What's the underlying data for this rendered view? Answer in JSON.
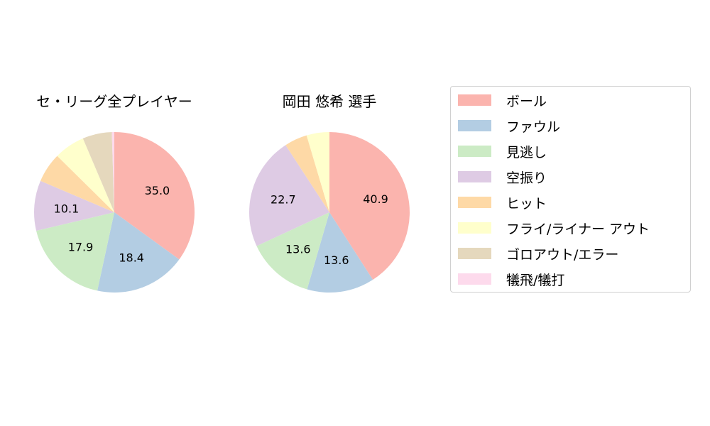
{
  "chart_data": [
    {
      "type": "pie",
      "title": "セ・リーグ全プレイヤー",
      "categories": [
        "ボール",
        "ファウル",
        "見逃し",
        "空振り",
        "ヒット",
        "フライ/ライナー アウト",
        "ゴロアウト/エラー",
        "犠飛/犠打"
      ],
      "values": [
        35.0,
        18.4,
        17.9,
        10.1,
        6.0,
        6.2,
        5.9,
        0.5
      ],
      "labels_shown": [
        "35.0",
        "18.4",
        "17.9",
        "10.1",
        "",
        "",
        "",
        ""
      ],
      "start_angle": 90,
      "direction": "clockwise"
    },
    {
      "type": "pie",
      "title": "岡田 悠希  選手",
      "categories": [
        "ボール",
        "ファウル",
        "見逃し",
        "空振り",
        "ヒット",
        "フライ/ライナー アウト",
        "ゴロアウト/エラー",
        "犠飛/犠打"
      ],
      "values": [
        40.9,
        13.6,
        13.6,
        22.7,
        4.6,
        4.6,
        0,
        0
      ],
      "labels_shown": [
        "40.9",
        "13.6",
        "13.6",
        "22.7",
        "",
        "",
        "",
        ""
      ],
      "start_angle": 90,
      "direction": "clockwise"
    }
  ],
  "colors": [
    "#fbb4ae",
    "#b3cde3",
    "#ccebc5",
    "#decbe4",
    "#fed9a6",
    "#ffffcc",
    "#e5d8bd",
    "#fddaec"
  ],
  "titles": {
    "left": "セ・リーグ全プレイヤー",
    "right": "岡田 悠希  選手"
  },
  "legend": {
    "items": [
      {
        "label": "ボール",
        "color": "#fbb4ae"
      },
      {
        "label": "ファウル",
        "color": "#b3cde3"
      },
      {
        "label": "見逃し",
        "color": "#ccebc5"
      },
      {
        "label": "空振り",
        "color": "#decbe4"
      },
      {
        "label": "ヒット",
        "color": "#fed9a6"
      },
      {
        "label": "フライ/ライナー アウト",
        "color": "#ffffcc"
      },
      {
        "label": "ゴロアウト/エラー",
        "color": "#e5d8bd"
      },
      {
        "label": "犠飛/犠打",
        "color": "#fddaec"
      }
    ]
  }
}
